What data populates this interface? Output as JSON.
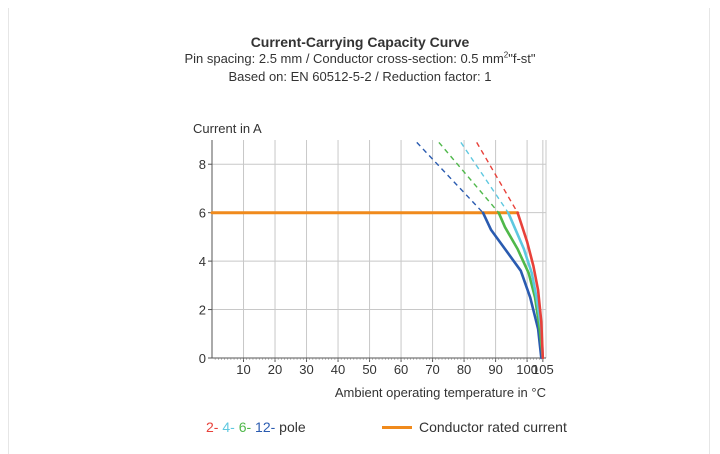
{
  "header": {
    "title": "Current-Carrying Capacity Curve",
    "subtitle1_pre": "Pin spacing: 2.5 mm / Conductor cross-section: 0.5 mm",
    "subtitle1_sup": "2",
    "subtitle1_post": "\"f-st\"",
    "subtitle2": "Based on: EN 60512-5-2 / Reduction factor: 1"
  },
  "chart_data": {
    "type": "line",
    "ylabel": "Current in A",
    "xlabel": "Ambient operating temperature in °C",
    "xlim": [
      0,
      106
    ],
    "ylim": [
      0,
      9
    ],
    "x_ticks": [
      10,
      20,
      30,
      40,
      50,
      60,
      70,
      80,
      90,
      100,
      105
    ],
    "y_ticks": [
      0,
      2,
      4,
      6,
      8
    ],
    "grid": true,
    "series": [
      {
        "key": "p2",
        "color": "#e8413a",
        "dashed": [
          [
            84,
            8.9
          ],
          [
            97,
            6
          ]
        ],
        "solid": [
          [
            97,
            6
          ],
          [
            98,
            5.6
          ],
          [
            100,
            4.8
          ],
          [
            102,
            3.8
          ],
          [
            103.5,
            2.8
          ],
          [
            104.5,
            1.5
          ],
          [
            105,
            0
          ]
        ]
      },
      {
        "key": "p4",
        "color": "#5ec8e0",
        "dashed": [
          [
            79,
            8.9
          ],
          [
            94,
            6
          ]
        ],
        "solid": [
          [
            94,
            6
          ],
          [
            96,
            5.4
          ],
          [
            99,
            4.5
          ],
          [
            101.5,
            3.5
          ],
          [
            103,
            2.5
          ],
          [
            104.5,
            1.2
          ],
          [
            105,
            0
          ]
        ]
      },
      {
        "key": "p6",
        "color": "#4fb84a",
        "dashed": [
          [
            72,
            8.9
          ],
          [
            91,
            6
          ]
        ],
        "solid": [
          [
            91,
            6
          ],
          [
            93,
            5.4
          ],
          [
            97,
            4.5
          ],
          [
            100.5,
            3.5
          ],
          [
            102.5,
            2.5
          ],
          [
            104,
            1.2
          ],
          [
            105,
            0
          ]
        ]
      },
      {
        "key": "p12",
        "color": "#2a5bb0",
        "dashed": [
          [
            65,
            8.9
          ],
          [
            86,
            6
          ]
        ],
        "solid": [
          [
            86,
            6
          ],
          [
            88.5,
            5.3
          ],
          [
            93,
            4.5
          ],
          [
            98,
            3.6
          ],
          [
            101,
            2.5
          ],
          [
            103.5,
            1.2
          ],
          [
            104.5,
            0
          ]
        ]
      },
      {
        "key": "rated",
        "color": "#f08a1c",
        "solid": [
          [
            0,
            6
          ],
          [
            97,
            6
          ]
        ]
      }
    ]
  },
  "legend": {
    "p2": "2-",
    "p4": "4-",
    "p6": "6-",
    "p12": "12-",
    "pole": "pole",
    "rated": "Conductor rated current",
    "colors": {
      "p2": "#e8413a",
      "p4": "#5ec8e0",
      "p6": "#4fb84a",
      "p12": "#2a5bb0",
      "rated": "#f08a1c"
    }
  }
}
